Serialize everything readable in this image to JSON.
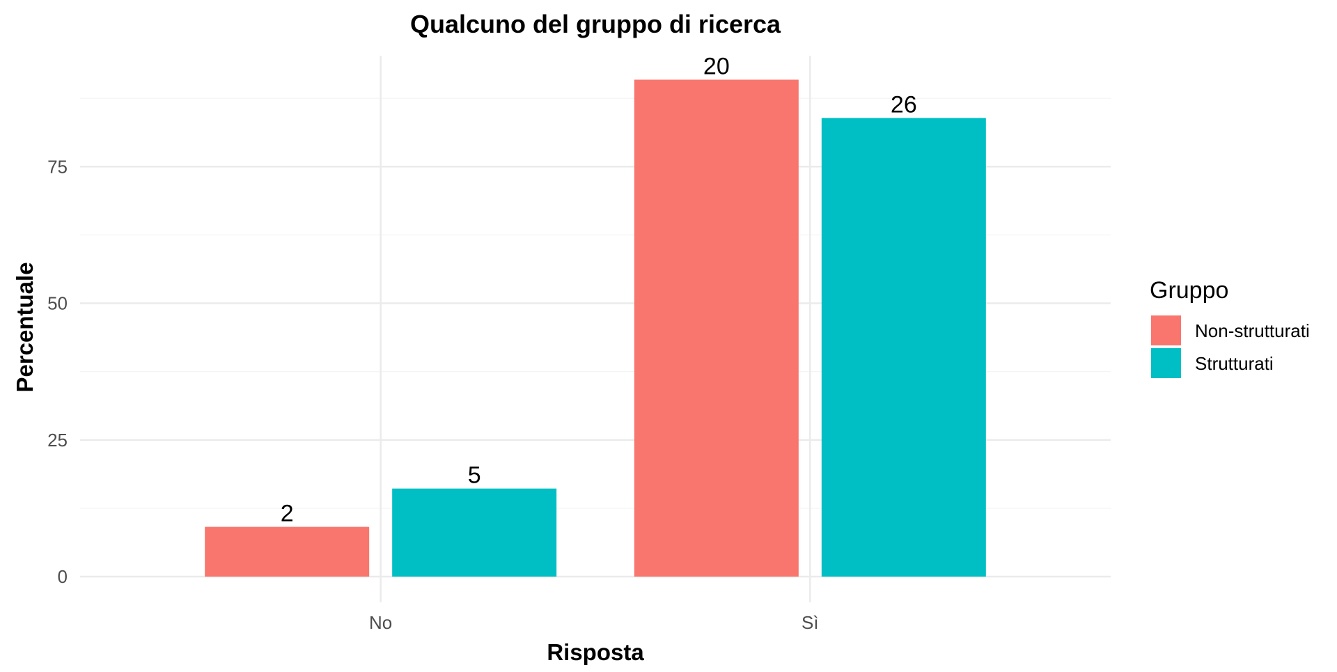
{
  "chart_data": {
    "type": "bar",
    "title": "Qualcuno del gruppo di ricerca",
    "xlabel": "Risposta",
    "ylabel": "Percentuale",
    "categories": [
      "No",
      "Sì"
    ],
    "series": [
      {
        "name": "Non-strutturati",
        "color": "#F8766D",
        "values": [
          9.1,
          90.9
        ],
        "labels": [
          "2",
          "20"
        ]
      },
      {
        "name": "Strutturati",
        "color": "#00BFC4",
        "values": [
          16.1,
          83.9
        ],
        "labels": [
          "5",
          "26"
        ]
      }
    ],
    "ylim": [
      0,
      95
    ],
    "yticks": [
      0,
      25,
      50,
      75
    ],
    "yticklabels": [
      "0",
      "25",
      "50",
      "75"
    ],
    "grid": true,
    "legend": {
      "title": "Gruppo",
      "position": "right"
    }
  }
}
